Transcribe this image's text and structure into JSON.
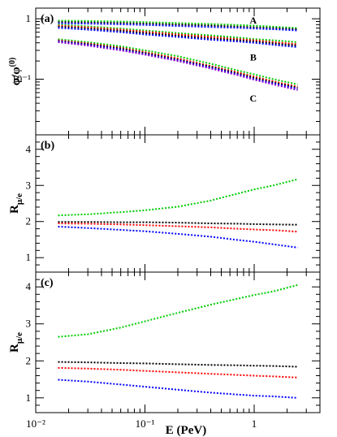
{
  "chart_data": [
    {
      "type": "line",
      "panel_label": "(a)",
      "ylabel": "φ/φ(0)",
      "y_scale": "log",
      "ylim": [
        0.012,
        1.5
      ],
      "ytick_labels": [
        "1",
        "10⁻¹"
      ],
      "ytick_values": [
        1,
        0.1
      ],
      "x": [
        0.016,
        0.03,
        0.06,
        0.1,
        0.2,
        0.4,
        0.7,
        1.0,
        1.5,
        2.5
      ],
      "annotations": [
        "A",
        "B",
        "C"
      ],
      "series": [
        {
          "color": "#00cc00",
          "values": [
            0.93,
            0.92,
            0.9,
            0.88,
            0.85,
            0.82,
            0.79,
            0.77,
            0.74,
            0.7
          ]
        },
        {
          "color": "#000000",
          "values": [
            0.88,
            0.87,
            0.85,
            0.83,
            0.8,
            0.77,
            0.74,
            0.72,
            0.7,
            0.67
          ]
        },
        {
          "color": "#0000ff",
          "values": [
            0.84,
            0.83,
            0.81,
            0.79,
            0.76,
            0.73,
            0.71,
            0.69,
            0.67,
            0.64
          ]
        },
        {
          "color": "#00cc00",
          "values": [
            0.8,
            0.75,
            0.69,
            0.64,
            0.58,
            0.53,
            0.49,
            0.46,
            0.44,
            0.41
          ]
        },
        {
          "color": "#ff0000",
          "values": [
            0.77,
            0.72,
            0.66,
            0.61,
            0.55,
            0.5,
            0.46,
            0.44,
            0.41,
            0.38
          ]
        },
        {
          "color": "#000000",
          "values": [
            0.74,
            0.69,
            0.63,
            0.58,
            0.52,
            0.47,
            0.44,
            0.42,
            0.39,
            0.36
          ]
        },
        {
          "color": "#0000ff",
          "values": [
            0.71,
            0.66,
            0.6,
            0.55,
            0.5,
            0.45,
            0.42,
            0.4,
            0.37,
            0.34
          ]
        },
        {
          "color": "#00cc00",
          "values": [
            0.46,
            0.41,
            0.35,
            0.3,
            0.24,
            0.18,
            0.14,
            0.12,
            0.1,
            0.082
          ]
        },
        {
          "color": "#ff0000",
          "values": [
            0.44,
            0.39,
            0.33,
            0.28,
            0.22,
            0.165,
            0.13,
            0.11,
            0.092,
            0.075
          ]
        },
        {
          "color": "#000000",
          "values": [
            0.43,
            0.38,
            0.32,
            0.27,
            0.21,
            0.16,
            0.125,
            0.105,
            0.088,
            0.072
          ]
        },
        {
          "color": "#0000ff",
          "values": [
            0.42,
            0.37,
            0.31,
            0.26,
            0.205,
            0.155,
            0.12,
            0.1,
            0.085,
            0.069
          ]
        },
        {
          "color": "#8800cc",
          "values": [
            0.41,
            0.36,
            0.3,
            0.255,
            0.2,
            0.15,
            0.117,
            0.098,
            0.082,
            0.066
          ]
        }
      ]
    },
    {
      "type": "line",
      "panel_label": "(b)",
      "ylabel": "Rμ/e",
      "ylim": [
        0.6,
        4.4
      ],
      "ytick_values": [
        1,
        2,
        3,
        4
      ],
      "ytick_labels": [
        "1",
        "2",
        "3",
        "4"
      ],
      "x": [
        0.016,
        0.03,
        0.06,
        0.1,
        0.2,
        0.4,
        0.7,
        1.0,
        1.5,
        2.5
      ],
      "series": [
        {
          "color": "#00cc00",
          "values": [
            2.17,
            2.2,
            2.26,
            2.31,
            2.41,
            2.58,
            2.77,
            2.89,
            3.0,
            3.17
          ]
        },
        {
          "color": "#000000",
          "values": [
            1.99,
            1.99,
            1.98,
            1.98,
            1.97,
            1.95,
            1.94,
            1.93,
            1.92,
            1.91
          ]
        },
        {
          "color": "#ff0000",
          "values": [
            1.95,
            1.94,
            1.92,
            1.9,
            1.87,
            1.84,
            1.8,
            1.78,
            1.76,
            1.72
          ]
        },
        {
          "color": "#0000ff",
          "values": [
            1.86,
            1.82,
            1.77,
            1.73,
            1.66,
            1.58,
            1.49,
            1.44,
            1.37,
            1.28
          ]
        }
      ]
    },
    {
      "type": "line",
      "panel_label": "(c)",
      "ylabel": "Rμ/e",
      "xlabel": "E (PeV)",
      "x_scale": "log",
      "xlim": [
        0.01,
        4.0
      ],
      "xtick_values": [
        0.01,
        0.1,
        1
      ],
      "xtick_labels": [
        "10⁻²",
        "10⁻¹",
        "1"
      ],
      "ylim": [
        0.6,
        4.4
      ],
      "ytick_values": [
        1,
        2,
        3,
        4
      ],
      "ytick_labels": [
        "1",
        "2",
        "3",
        "4"
      ],
      "x": [
        0.016,
        0.03,
        0.06,
        0.1,
        0.2,
        0.4,
        0.7,
        1.0,
        1.5,
        2.5
      ],
      "series": [
        {
          "color": "#00cc00",
          "values": [
            2.65,
            2.72,
            2.9,
            3.07,
            3.3,
            3.52,
            3.68,
            3.78,
            3.88,
            4.05
          ]
        },
        {
          "color": "#000000",
          "values": [
            1.97,
            1.96,
            1.94,
            1.93,
            1.91,
            1.89,
            1.88,
            1.87,
            1.86,
            1.84
          ]
        },
        {
          "color": "#ff0000",
          "values": [
            1.81,
            1.79,
            1.76,
            1.73,
            1.69,
            1.65,
            1.62,
            1.6,
            1.58,
            1.55
          ]
        },
        {
          "color": "#0000ff",
          "values": [
            1.49,
            1.44,
            1.36,
            1.3,
            1.22,
            1.14,
            1.09,
            1.06,
            1.04,
            1.0
          ]
        }
      ]
    }
  ]
}
